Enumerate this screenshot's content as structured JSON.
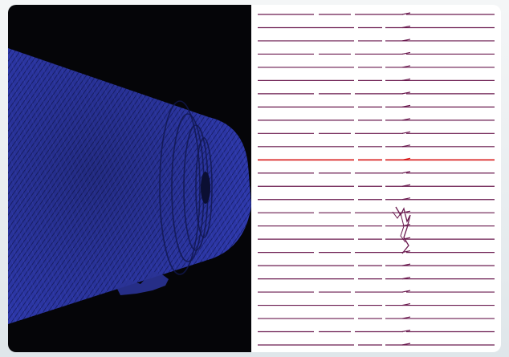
{
  "figure": {
    "left_panel": {
      "icon": "point-cloud-cylinder-icon",
      "cloud_color": "#2b35a3",
      "background_color": "#050508"
    },
    "right_panel": {
      "icon": "stacked-trace-profiles-icon",
      "trace_color": "#6a1a4f",
      "highlight_color": "#d81c1c",
      "background_color": "#ffffff",
      "trace_count": 26,
      "highlighted_trace_index": 11
    }
  }
}
